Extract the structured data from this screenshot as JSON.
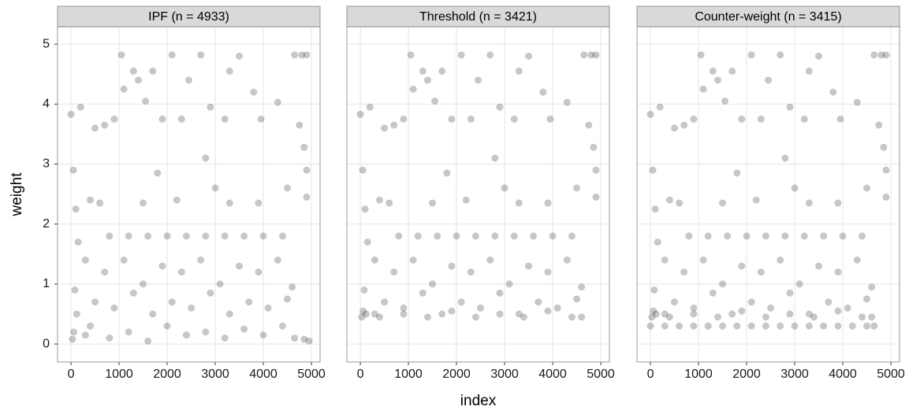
{
  "chart_data": [
    {
      "type": "scatter",
      "title": "IPF (n = 4933)",
      "ylabel": "weight",
      "color": "#000000",
      "grid": true,
      "xlim": [
        -279,
        5180
      ],
      "ylim": [
        -0.3,
        5.29
      ],
      "xticks": [
        0,
        1000,
        2000,
        3000,
        4000,
        5000
      ],
      "yticks": [
        0,
        1,
        2,
        3,
        4,
        5
      ],
      "x": [
        0,
        200,
        50,
        100,
        150,
        80,
        120,
        60,
        30,
        300,
        500,
        700,
        900,
        1050,
        1100,
        1300,
        1400,
        1550,
        1700,
        1900,
        2100,
        2300,
        2450,
        2700,
        2900,
        3200,
        3300,
        3500,
        3800,
        3950,
        4300,
        4650,
        4800,
        4900,
        4750,
        4850,
        4900,
        4900,
        400,
        800,
        1200,
        1600,
        2000,
        2400,
        2800,
        3200,
        3600,
        4000,
        4400,
        600,
        1500,
        2200,
        3300,
        3900,
        4500,
        300,
        700,
        1100,
        1500,
        1900,
        2300,
        2700,
        3100,
        3500,
        3900,
        4300,
        4600,
        500,
        900,
        1300,
        1700,
        2100,
        2500,
        2900,
        3300,
        3700,
        4100,
        4500,
        400,
        800,
        1200,
        1600,
        2000,
        2400,
        2800,
        3200,
        3600,
        4000,
        4400,
        4650,
        4850,
        4950,
        2800,
        1800,
        3000
      ],
      "y": [
        3.83,
        3.95,
        2.9,
        2.25,
        1.7,
        0.9,
        0.5,
        0.2,
        0.08,
        0.15,
        3.6,
        3.65,
        3.75,
        4.82,
        4.25,
        4.55,
        4.4,
        4.05,
        4.55,
        3.75,
        4.82,
        3.75,
        4.4,
        4.82,
        3.95,
        3.75,
        4.55,
        4.8,
        4.2,
        3.75,
        4.03,
        4.82,
        4.82,
        4.82,
        3.65,
        3.28,
        2.9,
        2.45,
        2.4,
        1.8,
        1.8,
        1.8,
        1.8,
        1.8,
        1.8,
        1.8,
        1.8,
        1.8,
        1.8,
        2.35,
        2.35,
        2.4,
        2.35,
        2.35,
        2.6,
        1.4,
        1.2,
        1.4,
        1.0,
        1.3,
        1.2,
        1.4,
        1.0,
        1.3,
        1.2,
        1.4,
        0.95,
        0.7,
        0.6,
        0.85,
        0.5,
        0.7,
        0.6,
        0.85,
        0.5,
        0.7,
        0.6,
        0.75,
        0.3,
        0.1,
        0.2,
        0.05,
        0.3,
        0.15,
        0.2,
        0.1,
        0.25,
        0.15,
        0.3,
        0.1,
        0.08,
        0.05,
        3.1,
        2.85,
        2.6
      ]
    },
    {
      "type": "scatter",
      "title": "Threshold (n = 3421)",
      "xlabel": "index",
      "color": "#000000",
      "grid": true,
      "xlim": [
        -279,
        5180
      ],
      "ylim": [
        -0.3,
        5.29
      ],
      "xticks": [
        0,
        1000,
        2000,
        3000,
        4000,
        5000
      ],
      "yticks": [
        0,
        1,
        2,
        3,
        4,
        5
      ],
      "x": [
        0,
        200,
        50,
        100,
        150,
        80,
        120,
        60,
        30,
        300,
        500,
        700,
        900,
        1050,
        1100,
        1300,
        1400,
        1550,
        1700,
        1900,
        2100,
        2300,
        2450,
        2700,
        2900,
        3200,
        3300,
        3500,
        3800,
        3950,
        4300,
        4650,
        4800,
        4900,
        4750,
        4850,
        4900,
        4900,
        400,
        800,
        1200,
        1600,
        2000,
        2400,
        2800,
        3200,
        3600,
        4000,
        4400,
        600,
        1500,
        2200,
        3300,
        3900,
        4500,
        300,
        700,
        1100,
        1500,
        1900,
        2300,
        2700,
        3100,
        3500,
        3900,
        4300,
        4600,
        500,
        900,
        1300,
        1700,
        2100,
        2500,
        2900,
        3300,
        3700,
        4100,
        4500,
        400,
        900,
        1400,
        1900,
        2400,
        2900,
        3400,
        3900,
        4400,
        4600,
        2800,
        1800,
        3000
      ],
      "y": [
        3.83,
        3.95,
        2.9,
        2.25,
        1.7,
        0.9,
        0.5,
        0.55,
        0.45,
        0.5,
        3.6,
        3.65,
        3.75,
        4.82,
        4.25,
        4.55,
        4.4,
        4.05,
        4.55,
        3.75,
        4.82,
        3.75,
        4.4,
        4.82,
        3.95,
        3.75,
        4.55,
        4.8,
        4.2,
        3.75,
        4.03,
        4.82,
        4.82,
        4.82,
        3.65,
        3.28,
        2.9,
        2.45,
        2.4,
        1.8,
        1.8,
        1.8,
        1.8,
        1.8,
        1.8,
        1.8,
        1.8,
        1.8,
        1.8,
        2.35,
        2.35,
        2.4,
        2.35,
        2.35,
        2.6,
        1.4,
        1.2,
        1.4,
        1.0,
        1.3,
        1.2,
        1.4,
        1.0,
        1.3,
        1.2,
        1.4,
        0.95,
        0.7,
        0.6,
        0.85,
        0.5,
        0.7,
        0.6,
        0.85,
        0.5,
        0.7,
        0.6,
        0.75,
        0.45,
        0.5,
        0.45,
        0.55,
        0.45,
        0.5,
        0.45,
        0.55,
        0.45,
        0.45,
        3.1,
        2.85,
        2.6
      ]
    },
    {
      "type": "scatter",
      "title": "Counter-weight (n = 3415)",
      "color": "#000000",
      "grid": true,
      "xlim": [
        -279,
        5180
      ],
      "ylim": [
        -0.3,
        5.29
      ],
      "xticks": [
        0,
        1000,
        2000,
        3000,
        4000,
        5000
      ],
      "yticks": [
        0,
        1,
        2,
        3,
        4,
        5
      ],
      "x": [
        0,
        200,
        50,
        100,
        150,
        80,
        120,
        60,
        30,
        300,
        500,
        700,
        900,
        1050,
        1100,
        1300,
        1400,
        1550,
        1700,
        1900,
        2100,
        2300,
        2450,
        2700,
        2900,
        3200,
        3300,
        3500,
        3800,
        3950,
        4300,
        4650,
        4800,
        4900,
        4750,
        4850,
        4900,
        4900,
        400,
        800,
        1200,
        1600,
        2000,
        2400,
        2800,
        3200,
        3600,
        4000,
        4400,
        600,
        1500,
        2200,
        3300,
        3900,
        4500,
        300,
        700,
        1100,
        1500,
        1900,
        2300,
        2700,
        3100,
        3500,
        3900,
        4300,
        4600,
        500,
        900,
        1300,
        1700,
        2100,
        2500,
        2900,
        3300,
        3700,
        4100,
        4500,
        400,
        900,
        1400,
        1900,
        2400,
        2900,
        3400,
        3900,
        4400,
        4600,
        2800,
        1800,
        3000,
        0,
        300,
        600,
        900,
        1200,
        1500,
        1800,
        2100,
        2400,
        2700,
        3000,
        3300,
        3600,
        3900,
        4200,
        4500,
        4650
      ],
      "y": [
        3.83,
        3.95,
        2.9,
        2.25,
        1.7,
        0.9,
        0.5,
        0.55,
        0.45,
        0.5,
        3.6,
        3.65,
        3.75,
        4.82,
        4.25,
        4.55,
        4.4,
        4.05,
        4.55,
        3.75,
        4.82,
        3.75,
        4.4,
        4.82,
        3.95,
        3.75,
        4.55,
        4.8,
        4.2,
        3.75,
        4.03,
        4.82,
        4.82,
        4.82,
        3.65,
        3.28,
        2.9,
        2.45,
        2.4,
        1.8,
        1.8,
        1.8,
        1.8,
        1.8,
        1.8,
        1.8,
        1.8,
        1.8,
        1.8,
        2.35,
        2.35,
        2.4,
        2.35,
        2.35,
        2.6,
        1.4,
        1.2,
        1.4,
        1.0,
        1.3,
        1.2,
        1.4,
        1.0,
        1.3,
        1.2,
        1.4,
        0.95,
        0.7,
        0.6,
        0.85,
        0.5,
        0.7,
        0.6,
        0.85,
        0.5,
        0.7,
        0.6,
        0.75,
        0.45,
        0.5,
        0.45,
        0.55,
        0.45,
        0.5,
        0.45,
        0.55,
        0.45,
        0.45,
        3.1,
        2.85,
        2.6,
        0.3,
        0.3,
        0.3,
        0.3,
        0.3,
        0.3,
        0.3,
        0.3,
        0.3,
        0.3,
        0.3,
        0.3,
        0.3,
        0.3,
        0.3,
        0.3,
        0.3
      ]
    }
  ]
}
